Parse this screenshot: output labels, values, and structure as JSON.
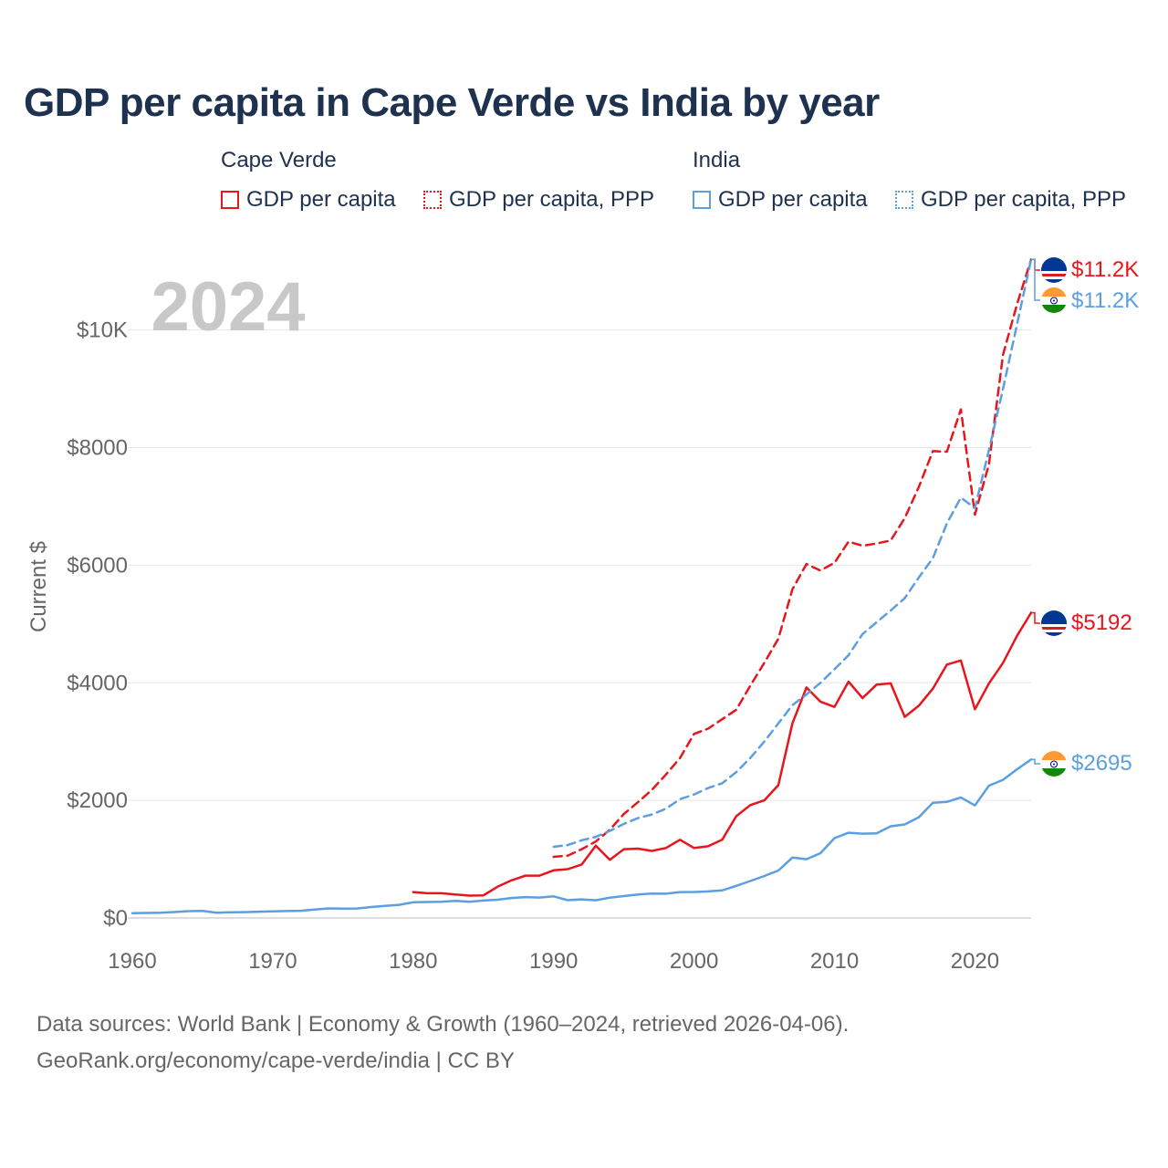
{
  "title": "GDP per capita in Cape Verde vs India by year",
  "legend": {
    "groups": [
      {
        "name": "Cape Verde",
        "items": [
          {
            "label": "GDP per capita",
            "style": "solid"
          },
          {
            "label": "GDP per capita, PPP",
            "style": "dotted"
          }
        ],
        "color": "#e8161c"
      },
      {
        "name": "India",
        "items": [
          {
            "label": "GDP per capita",
            "style": "solid"
          },
          {
            "label": "GDP per capita, PPP",
            "style": "dotted"
          }
        ],
        "color": "#5c9fe0"
      }
    ]
  },
  "year_watermark": "2024",
  "end_labels": {
    "cv_ppp": "$11.2K",
    "in_ppp": "$11.2K",
    "cv_gdp": "$5192",
    "in_gdp": "$2695"
  },
  "footer": {
    "line1": "Data sources: World Bank | Economy & Growth (1960–2024, retrieved 2026-04-06).",
    "line2": "GeoRank.org/economy/cape-verde/india | CC BY"
  },
  "chart_data": {
    "type": "line",
    "title": "GDP per capita in Cape Verde vs India by year",
    "xlabel": "",
    "ylabel": "Current $",
    "xlim": [
      1960,
      2024
    ],
    "ylim": [
      0,
      11500
    ],
    "x_ticks": [
      1960,
      1970,
      1980,
      1990,
      2000,
      2010,
      2020
    ],
    "x_tick_labels": [
      "1960",
      "1970",
      "1980",
      "1990",
      "2000",
      "2010",
      "2020"
    ],
    "y_ticks": [
      0,
      2000,
      4000,
      6000,
      8000,
      10000
    ],
    "y_tick_labels": [
      "$0",
      "$2000",
      "$4000",
      "$6000",
      "$8000",
      "$10K"
    ],
    "grid": true,
    "series": [
      {
        "name": "Cape Verde GDP per capita",
        "color": "#e8161c",
        "dash": "solid",
        "start_year": 1980,
        "values": [
          440,
          420,
          420,
          400,
          380,
          385,
          530,
          640,
          720,
          720,
          810,
          830,
          910,
          1230,
          990,
          1170,
          1180,
          1140,
          1190,
          1330,
          1190,
          1220,
          1330,
          1730,
          1920,
          2000,
          2260,
          3310,
          3920,
          3680,
          3590,
          4020,
          3740,
          3970,
          3990,
          3420,
          3610,
          3900,
          4310,
          4380,
          3550,
          3990,
          4340,
          4800,
          5192
        ]
      },
      {
        "name": "Cape Verde GDP per capita, PPP",
        "color": "#e8161c",
        "dash": "dashed",
        "start_year": 1990,
        "values": [
          1040,
          1060,
          1170,
          1300,
          1500,
          1770,
          1970,
          2180,
          2440,
          2720,
          3130,
          3220,
          3380,
          3540,
          3950,
          4340,
          4750,
          5590,
          6020,
          5910,
          6040,
          6400,
          6330,
          6370,
          6420,
          6800,
          7330,
          7940,
          7930,
          8650,
          6860,
          7720,
          9580,
          10440,
          11200
        ]
      },
      {
        "name": "India GDP per capita",
        "color": "#5c9fe0",
        "dash": "solid",
        "start_year": 1960,
        "values": [
          82,
          86,
          90,
          101,
          116,
          119,
          90,
          96,
          99,
          107,
          112,
          118,
          122,
          143,
          163,
          158,
          161,
          186,
          206,
          224,
          267,
          271,
          275,
          292,
          277,
          297,
          310,
          340,
          355,
          347,
          368,
          303,
          317,
          301,
          346,
          373,
          400,
          415,
          413,
          441,
          442,
          452,
          468,
          546,
          628,
          714,
          807,
          1028,
          999,
          1102,
          1358,
          1450,
          1434,
          1438,
          1560,
          1590,
          1714,
          1958,
          1974,
          2050,
          1913,
          2250,
          2350,
          2530,
          2695
        ]
      },
      {
        "name": "India GDP per capita, PPP",
        "color": "#5c9fe0",
        "dash": "dashed",
        "start_year": 1990,
        "values": [
          1210,
          1240,
          1320,
          1380,
          1480,
          1600,
          1700,
          1760,
          1860,
          2020,
          2100,
          2210,
          2290,
          2480,
          2720,
          3000,
          3310,
          3620,
          3800,
          4000,
          4230,
          4470,
          4830,
          5030,
          5230,
          5440,
          5790,
          6120,
          6710,
          7150,
          6970,
          7960,
          9000,
          10100,
          11200
        ]
      }
    ]
  }
}
